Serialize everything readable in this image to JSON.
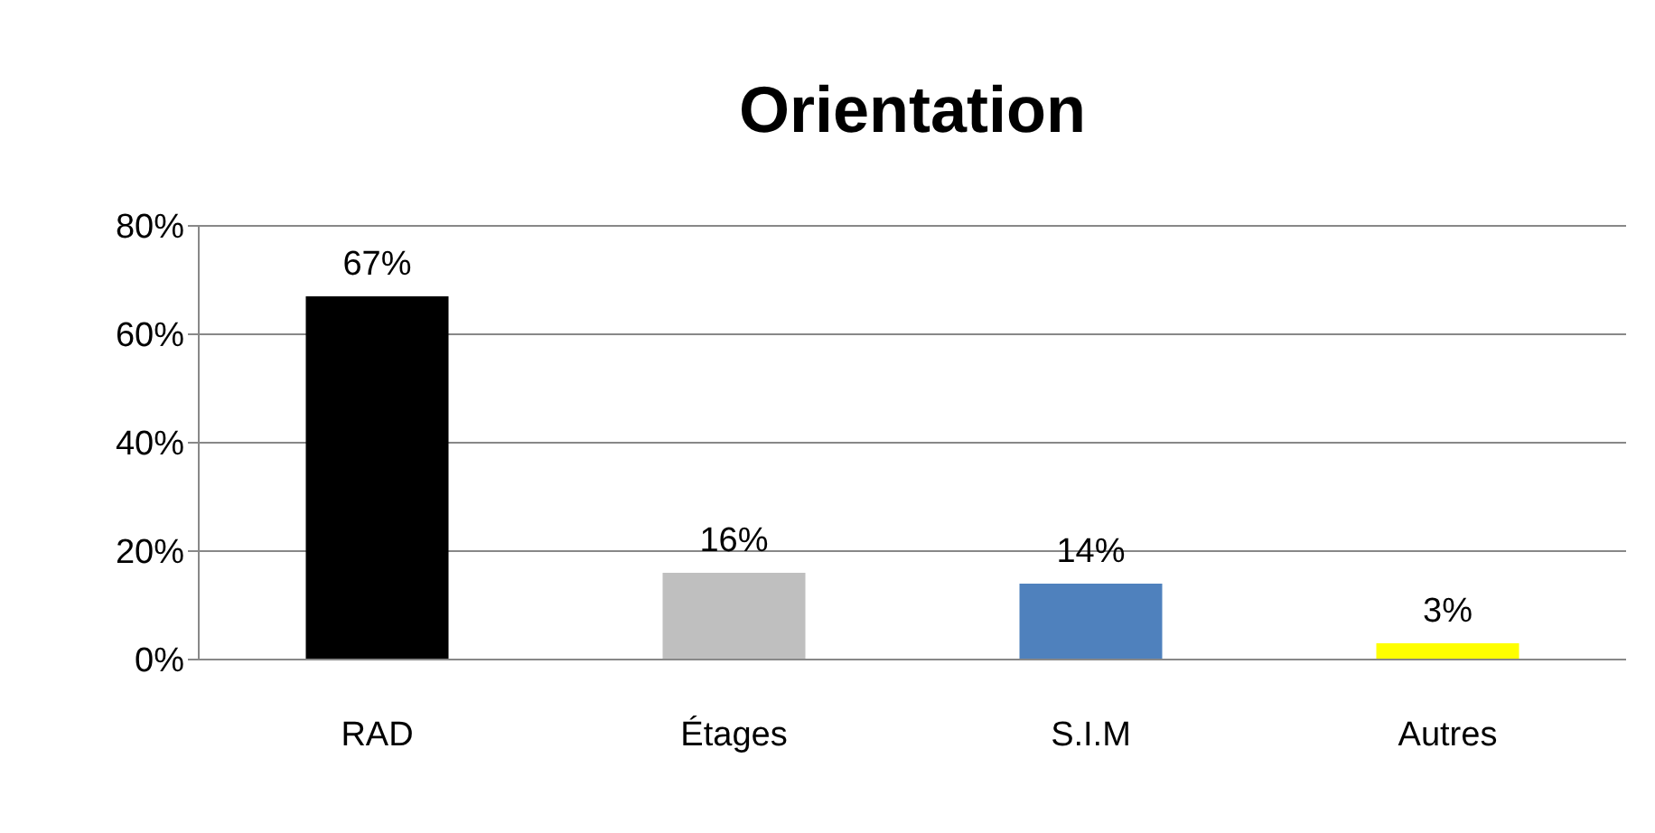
{
  "chart_data": {
    "type": "bar",
    "title": "Orientation",
    "categories": [
      "RAD",
      "Étages",
      "S.I.M",
      "Autres"
    ],
    "values": [
      67,
      16,
      14,
      3
    ],
    "colors": [
      "#000000",
      "#bfbfbf",
      "#4f81bd",
      "#ffff00"
    ],
    "value_labels": [
      "67%",
      "16%",
      "14%",
      "3%"
    ],
    "ylim": [
      0,
      80
    ],
    "yticks": [
      {
        "value": 0,
        "label": "0%"
      },
      {
        "value": 20,
        "label": "20%"
      },
      {
        "value": 40,
        "label": "40%"
      },
      {
        "value": 60,
        "label": "60%"
      },
      {
        "value": 80,
        "label": "80%"
      }
    ],
    "grid": "y",
    "legend": false
  }
}
